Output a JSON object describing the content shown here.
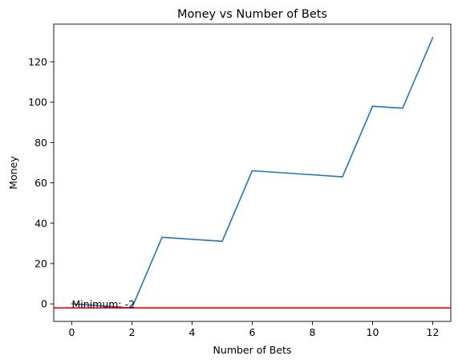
{
  "chart_data": {
    "type": "line",
    "title": "Money vs Number of Bets",
    "xlabel": "Number of Bets",
    "ylabel": "Money",
    "xlim": [
      -0.6,
      12.6
    ],
    "ylim": [
      -8.7,
      138.7
    ],
    "xticks": [
      0,
      2,
      4,
      6,
      8,
      10,
      12
    ],
    "yticks": [
      0,
      20,
      40,
      60,
      80,
      100,
      120
    ],
    "grid": false,
    "series": [
      {
        "x": [
          0,
          1,
          2,
          3,
          4,
          5,
          6,
          7,
          8,
          9,
          10,
          11,
          12
        ],
        "y": [
          0,
          -1,
          -2,
          33,
          32,
          31,
          66,
          65,
          64,
          63,
          98,
          97,
          132
        ],
        "color": "#1f77b4"
      }
    ],
    "hline": {
      "y": -2,
      "color": "#ff0000"
    },
    "annotation": {
      "text": "Minimum: -2",
      "x": 0,
      "y": -2
    }
  }
}
